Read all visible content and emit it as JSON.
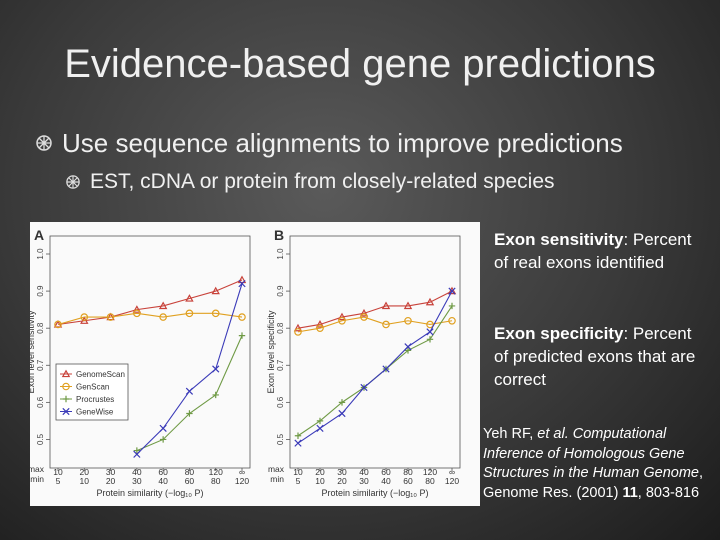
{
  "title": "Evidence-based gene predictions",
  "bullets": [
    {
      "text": "Use sequence alignments to improve predictions",
      "level": 1
    },
    {
      "text": "EST, cDNA or protein from closely-related species",
      "level": 2
    }
  ],
  "definitions": [
    {
      "term": "Exon sensitivity",
      "text": ": Percent of real exons identified"
    },
    {
      "term": "Exon specificity",
      "text": ": Percent of predicted exons that are correct"
    }
  ],
  "citation": [
    {
      "text": "Yeh RF, ",
      "style": "normal"
    },
    {
      "text": "et al. Computational Inference of Homologous Gene Structures in the Human Genome",
      "style": "italic"
    },
    {
      "text": ", Genome Res. (2001) ",
      "style": "normal"
    },
    {
      "text": "11",
      "style": "bold"
    },
    {
      "text": ", 803-816",
      "style": "normal"
    }
  ],
  "chart_data": [
    {
      "type": "line",
      "panel": "A",
      "y_label": "Exon level sensitivity",
      "x_label": "Protein similarity (−log₁₀ P)",
      "row_labels": [
        "max",
        "min"
      ],
      "categories": [
        "10",
        "20",
        "30",
        "40",
        "60",
        "80",
        "120",
        "∞"
      ],
      "categories_min": [
        "5",
        "10",
        "20",
        "30",
        "40",
        "60",
        "80",
        "120"
      ],
      "ylim": [
        0.45,
        1.0
      ],
      "yticks": [
        0.5,
        0.6,
        0.7,
        0.8,
        0.9,
        {
          "value": 1,
          "label": "1.0"
        }
      ],
      "legend": "center-left",
      "series": [
        {
          "name": "GenomeScan",
          "color": "#c8423a",
          "marker": "triangle",
          "values": [
            0.81,
            0.82,
            0.83,
            0.85,
            0.86,
            0.88,
            0.9,
            0.93
          ]
        },
        {
          "name": "GenScan",
          "color": "#e0a020",
          "marker": "circle",
          "values": [
            0.81,
            0.83,
            0.83,
            0.84,
            0.83,
            0.84,
            0.84,
            0.83
          ]
        },
        {
          "name": "Procrustes",
          "color": "#6f9a45",
          "marker": "plus",
          "values": [
            null,
            null,
            null,
            0.47,
            0.5,
            0.57,
            0.62,
            0.78
          ]
        },
        {
          "name": "GeneWise",
          "color": "#3a3ab8",
          "marker": "cross",
          "values": [
            null,
            null,
            null,
            0.46,
            0.53,
            0.63,
            0.69,
            0.92
          ]
        }
      ]
    },
    {
      "type": "line",
      "panel": "B",
      "y_label": "Exon level specificity",
      "x_label": "Protein similarity (−log₁₀ P)",
      "row_labels": [
        "max",
        "min"
      ],
      "categories": [
        "10",
        "20",
        "30",
        "40",
        "60",
        "80",
        "120",
        "∞"
      ],
      "categories_min": [
        "5",
        "10",
        "20",
        "30",
        "40",
        "60",
        "80",
        "120"
      ],
      "ylim": [
        0.45,
        1.0
      ],
      "yticks": [
        0.5,
        0.6,
        0.7,
        0.8,
        0.9,
        {
          "value": 1,
          "label": "1.0"
        }
      ],
      "series": [
        {
          "color": "#c8423a",
          "marker": "triangle",
          "values": [
            0.8,
            0.81,
            0.83,
            0.84,
            0.86,
            0.86,
            0.87,
            0.9
          ]
        },
        {
          "color": "#e0a020",
          "marker": "circle",
          "values": [
            0.79,
            0.8,
            0.82,
            0.83,
            0.81,
            0.82,
            0.81,
            0.82
          ]
        },
        {
          "color": "#6f9a45",
          "marker": "plus",
          "values": [
            0.51,
            0.55,
            0.6,
            0.64,
            0.69,
            0.74,
            0.77,
            0.86
          ]
        },
        {
          "color": "#3a3ab8",
          "marker": "cross",
          "values": [
            0.49,
            0.53,
            0.57,
            0.64,
            0.69,
            0.75,
            0.79,
            0.9
          ]
        }
      ]
    }
  ]
}
